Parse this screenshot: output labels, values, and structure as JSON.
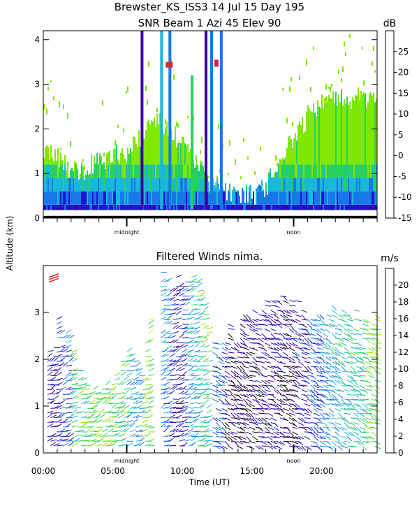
{
  "chart_data": {
    "type": "heatmap",
    "title": "Brewster_KS_ISS3  14 Jul 15 Day 195",
    "subtitle": "SNR Beam 1 Azi  45 Elev 90",
    "ylabel": "Altitude (km)",
    "xlabel": "Time (UT)",
    "x_ticks": [
      "00:00",
      "05:00",
      "10:00",
      "15:00",
      "20:00"
    ],
    "xlim_hours": [
      0,
      24
    ],
    "marker_labels": [
      "midnight",
      "noon"
    ],
    "snr_panel": {
      "ylim_km": [
        0,
        4.2
      ],
      "y_ticks": [
        0,
        1,
        2,
        3,
        4
      ],
      "colorbar_unit": "dB",
      "colorbar_ticks": [
        -15,
        -10,
        -5,
        0,
        5,
        10,
        15,
        20,
        25
      ],
      "colorbar_range": [
        -15,
        30
      ],
      "colors": [
        "#80e800",
        "#28d060",
        "#18b8d8",
        "#1878e8",
        "#1818d0",
        "#3c0098",
        "#600060",
        "#d82828",
        "#e86818",
        "#f0b818"
      ],
      "echo_layer_top_km": [
        {
          "hour": 0,
          "km": 1.6
        },
        {
          "hour": 1,
          "km": 1.3
        },
        {
          "hour": 2,
          "km": 1.1
        },
        {
          "hour": 3,
          "km": 1.1
        },
        {
          "hour": 4,
          "km": 1.3
        },
        {
          "hour": 5,
          "km": 1.4
        },
        {
          "hour": 6,
          "km": 1.5
        },
        {
          "hour": 7,
          "km": 1.8
        },
        {
          "hour": 8,
          "km": 2.2
        },
        {
          "hour": 9,
          "km": 2.0
        },
        {
          "hour": 10,
          "km": 1.7
        },
        {
          "hour": 11,
          "km": 1.3
        },
        {
          "hour": 12,
          "km": 0.8
        },
        {
          "hour": 13,
          "km": 0.6
        },
        {
          "hour": 14,
          "km": 0.5
        },
        {
          "hour": 15,
          "km": 0.5
        },
        {
          "hour": 16,
          "km": 0.7
        },
        {
          "hour": 17,
          "km": 1.3
        },
        {
          "hour": 18,
          "km": 1.8
        },
        {
          "hour": 19,
          "km": 2.3
        },
        {
          "hour": 20,
          "km": 2.6
        },
        {
          "hour": 21,
          "km": 2.7
        },
        {
          "hour": 22,
          "km": 2.7
        },
        {
          "hour": 23,
          "km": 2.7
        },
        {
          "hour": 24,
          "km": 2.6
        }
      ]
    },
    "wind_panel": {
      "title": "Filtered Winds nima.",
      "ylim_km": [
        0,
        4
      ],
      "y_ticks": [
        0,
        1,
        2,
        3
      ],
      "colorbar_unit": "m/s",
      "colorbar_ticks": [
        0,
        2,
        4,
        6,
        8,
        10,
        12,
        14,
        16,
        18,
        20
      ],
      "colorbar_range": [
        0,
        22
      ],
      "colors": [
        "#000000",
        "#3c0098",
        "#1818d0",
        "#1878e8",
        "#18b8d8",
        "#28d060",
        "#80e800",
        "#c8e800",
        "#f0b818",
        "#e86818",
        "#d82828"
      ],
      "barb_top_km": [
        {
          "hour": 0.5,
          "km": 2.2
        },
        {
          "hour": 1,
          "km": 2.8
        },
        {
          "hour": 2,
          "km": 2.3
        },
        {
          "hour": 3,
          "km": 1.5
        },
        {
          "hour": 4,
          "km": 1.4
        },
        {
          "hour": 5,
          "km": 1.4
        },
        {
          "hour": 6,
          "km": 2.1
        },
        {
          "hour": 7,
          "km": 1.6
        },
        {
          "hour": 8,
          "km": 3.9
        },
        {
          "hour": 9,
          "km": 3.6
        },
        {
          "hour": 10,
          "km": 3.9
        },
        {
          "hour": 11,
          "km": 3.9
        },
        {
          "hour": 12,
          "km": 2.4
        },
        {
          "hour": 13,
          "km": 2.5
        },
        {
          "hour": 14,
          "km": 2.7
        },
        {
          "hour": 15,
          "km": 3.0
        },
        {
          "hour": 16,
          "km": 3.2
        },
        {
          "hour": 17,
          "km": 3.4
        },
        {
          "hour": 18,
          "km": 3.2
        },
        {
          "hour": 19,
          "km": 3.0
        },
        {
          "hour": 20,
          "km": 3.0
        },
        {
          "hour": 21,
          "km": 3.0
        },
        {
          "hour": 22,
          "km": 3.0
        },
        {
          "hour": 23,
          "km": 2.8
        }
      ],
      "speed_by_hour_ms": [
        4,
        6,
        11,
        12,
        12,
        11,
        8,
        12,
        7,
        4,
        8,
        10,
        6,
        2,
        2,
        3,
        3,
        2,
        4,
        6,
        8,
        9,
        10,
        12
      ]
    }
  }
}
